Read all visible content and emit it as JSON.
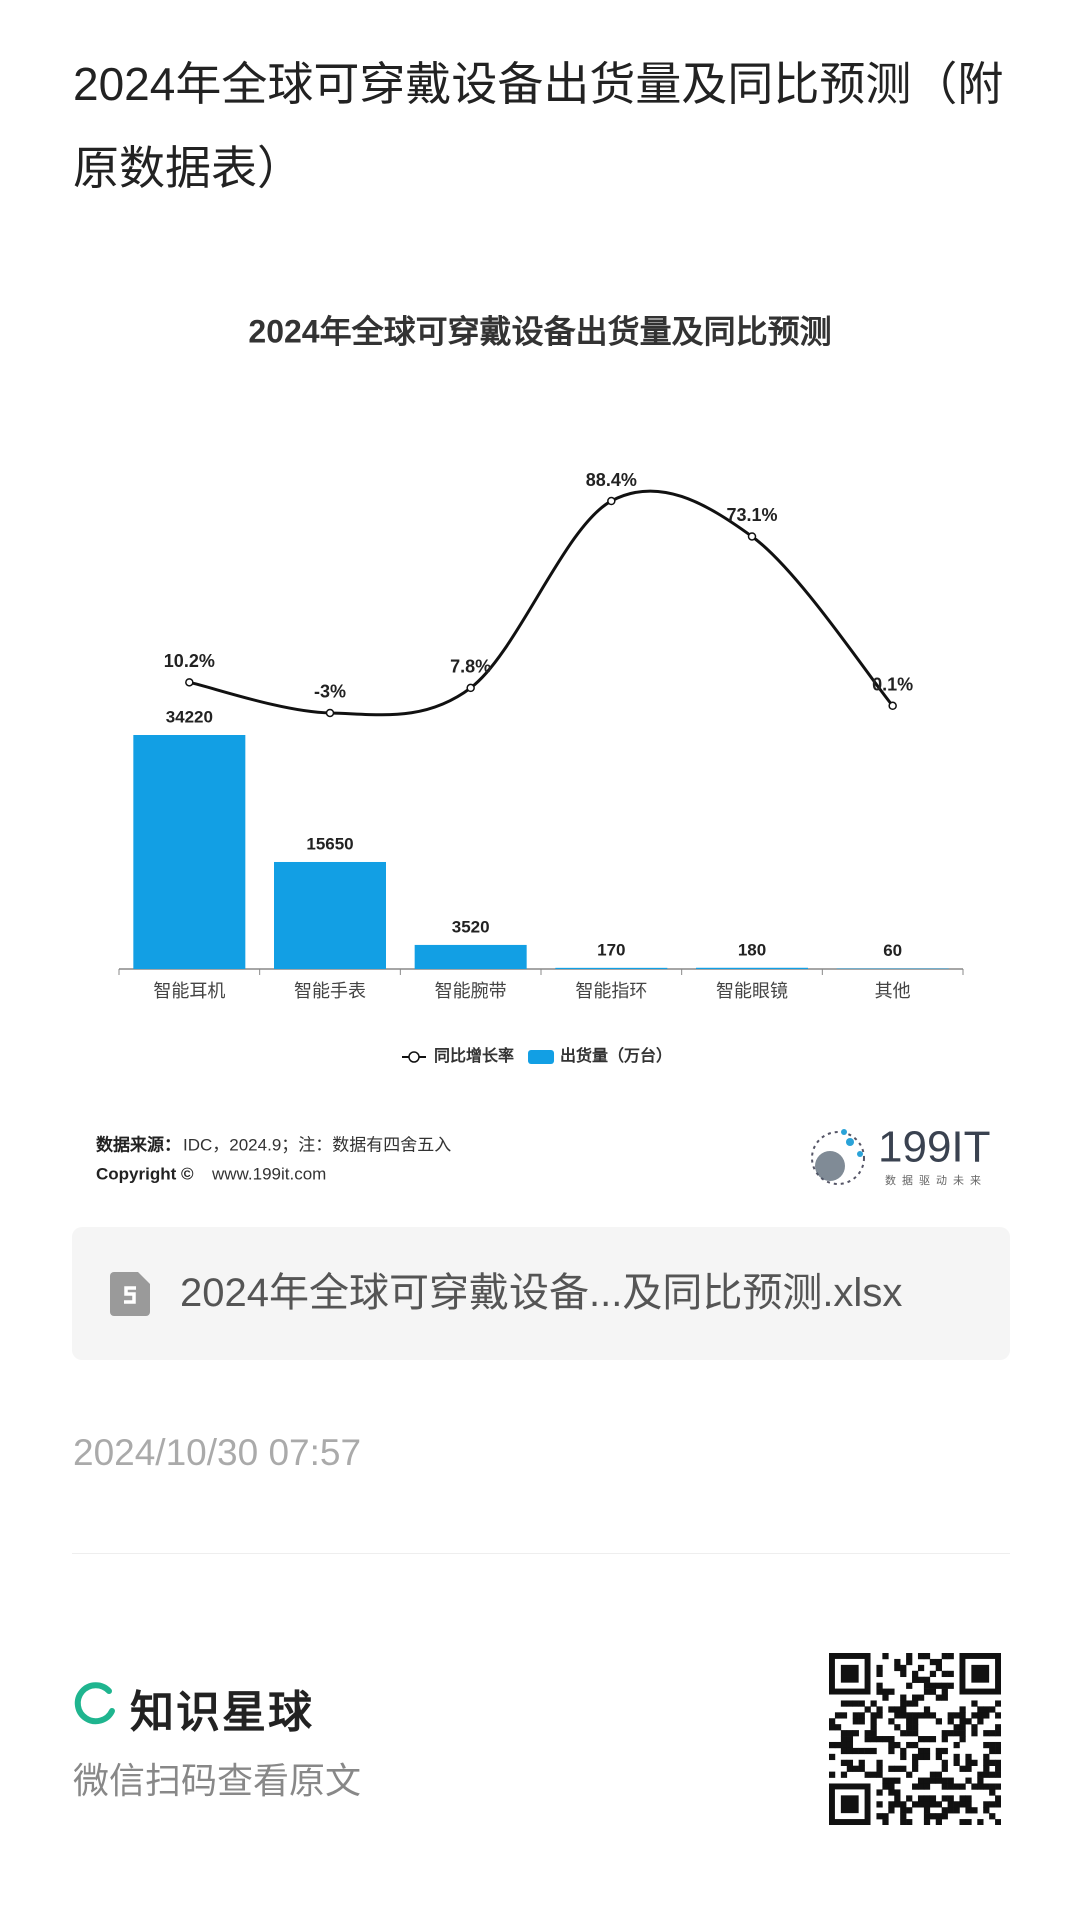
{
  "header": {
    "title": "2024年全球可穿戴设备出货量及同比预测（附原数据表）"
  },
  "chart_data": {
    "type": "bar",
    "title": "2024年全球可穿戴设备出货量及同比预测",
    "categories": [
      "智能耳机",
      "智能手表",
      "智能腕带",
      "智能指环",
      "智能眼镜",
      "其他"
    ],
    "series": [
      {
        "name": "同比增长率",
        "type": "line",
        "color": "#111111",
        "values": [
          10.2,
          -3,
          7.8,
          88.4,
          73.1,
          0.1
        ],
        "value_labels": [
          "10.2%",
          "-3%",
          "7.8%",
          "88.4%",
          "73.1%",
          "0.1%"
        ]
      },
      {
        "name": "出货量（万台）",
        "type": "bar",
        "color": "#129fe4",
        "values": [
          34220,
          15650,
          3520,
          170,
          180,
          60
        ]
      }
    ],
    "legend": "bottom"
  },
  "source": {
    "label": "数据来源：",
    "text": "IDC，2024.9；注：数据有四舍五入",
    "copyright": "Copyright ©",
    "site": "www.199it.com"
  },
  "logo": {
    "name": "199IT",
    "slogan": "数据驱动未来"
  },
  "file": {
    "name": "2024年全球可穿戴设备...及同比预测.xlsx"
  },
  "date": "2024/10/30 07:57",
  "footer": {
    "brand": "知识星球",
    "hint": "微信扫码查看原文"
  }
}
